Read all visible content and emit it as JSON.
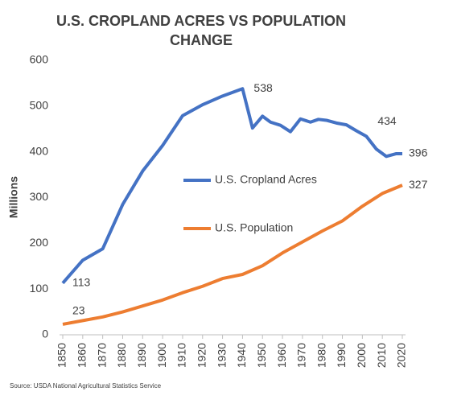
{
  "chart_data": {
    "type": "line",
    "title": "U.S. CROPLAND ACRES VS POPULATION CHANGE",
    "y_label": "Millions",
    "source": "Source: USDA National Agricultural Statistics Service",
    "xlim": [
      1850,
      2020
    ],
    "xticks": [
      1850,
      1860,
      1870,
      1880,
      1890,
      1900,
      1910,
      1920,
      1930,
      1940,
      1950,
      1960,
      1970,
      1980,
      1990,
      2000,
      2010,
      2020
    ],
    "ylim": [
      0,
      600
    ],
    "yticks": [
      0,
      100,
      200,
      300,
      400,
      500,
      600
    ],
    "grid": false,
    "legend": "center",
    "series": [
      {
        "name": "U.S. Cropland Acres",
        "color": "#4472c4",
        "x": [
          1850,
          1860,
          1870,
          1880,
          1890,
          1900,
          1910,
          1920,
          1930,
          1940,
          1945,
          1950,
          1954,
          1959,
          1964,
          1969,
          1974,
          1978,
          1982,
          1987,
          1992,
          1997,
          2002,
          2007,
          2012,
          2017,
          2020
        ],
        "values": [
          113,
          163,
          188,
          285,
          358,
          414,
          479,
          503,
          522,
          538,
          452,
          478,
          465,
          458,
          444,
          472,
          465,
          471,
          469,
          463,
          459,
          446,
          434,
          406,
          390,
          396,
          396
        ],
        "labeled_points": [
          0,
          9,
          22,
          26
        ]
      },
      {
        "name": "U.S. Population",
        "color": "#ed7d31",
        "x": [
          1850,
          1860,
          1870,
          1880,
          1890,
          1900,
          1910,
          1920,
          1930,
          1940,
          1950,
          1960,
          1970,
          1980,
          1990,
          2000,
          2010,
          2020
        ],
        "values": [
          23,
          31,
          39,
          50,
          63,
          76,
          92,
          106,
          123,
          132,
          151,
          179,
          203,
          227,
          249,
          281,
          309,
          327
        ],
        "labeled_points": [
          0,
          17
        ]
      }
    ]
  }
}
